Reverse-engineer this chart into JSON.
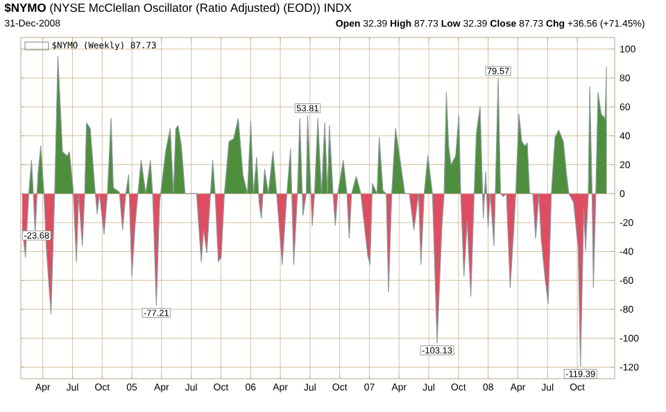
{
  "chart_data": {
    "type": "area",
    "title": "**$NYMO** (NYSE McClellan Oscillator (Ratio Adjusted) (EOD)) INDX",
    "subtitle": "31-Dec-2008",
    "annotations": [
      "**Open** 32.39 **High** 87.73 **Low** 32.39 **Close** 87.73 **Chg** +36.56 (+71.45%)",
      {
        "text": "-23.68",
        "x": 2004.077,
        "y": -23.68
      },
      {
        "text": "-77.21",
        "x": 2005.206,
        "y": -77.21
      },
      {
        "text": "53.81",
        "x": 2006.48,
        "y": 53.81
      },
      {
        "text": "-103.13",
        "x": 2007.57,
        "y": -103.13
      },
      {
        "text": "79.57",
        "x": 2008.084,
        "y": 79.57
      },
      {
        "text": "-119.39",
        "x": 2008.777,
        "y": -119.39
      }
    ],
    "series": [
      {
        "name": "$NYMO (Weekly) 87.73",
        "color": "#4e8f3e",
        "x": [
          2004.077,
          2004.104,
          2004.132,
          2004.155,
          2004.171,
          2004.186,
          2004.209,
          2004.233,
          2004.26,
          2004.28,
          2004.319,
          2004.35,
          2004.377,
          2004.416,
          2004.455,
          2004.474,
          2004.505,
          2004.533,
          2004.552,
          2004.583,
          2004.603,
          2004.618,
          2004.65,
          2004.688,
          2004.708,
          2004.727,
          2004.766,
          2004.794,
          2004.825,
          2004.844,
          2004.895,
          2004.922,
          2004.949,
          2004.973,
          2005.0,
          2005.027,
          2005.051,
          2005.078,
          2005.117,
          2005.156,
          2005.175,
          2005.206,
          2005.234,
          2005.284,
          2005.323,
          2005.35,
          2005.37,
          2005.389,
          2005.417,
          2005.448,
          2005.545,
          2005.584,
          2005.604,
          2005.631,
          2005.662,
          2005.681,
          2005.701,
          2005.728,
          2005.752,
          2005.779,
          2005.818,
          2005.857,
          2005.896,
          2005.935,
          2005.973,
          2006.001,
          2006.024,
          2006.051,
          2006.071,
          2006.09,
          2006.118,
          2006.149,
          2006.188,
          2006.219,
          2006.266,
          2006.305,
          2006.336,
          2006.363,
          2006.394,
          2006.414,
          2006.441,
          2006.468,
          2006.48,
          2006.519,
          2006.538,
          2006.566,
          2006.597,
          2006.624,
          2006.647,
          2006.663,
          2006.694,
          2006.713,
          2006.733,
          2006.78,
          2006.811,
          2006.83,
          2006.85,
          2006.889,
          2006.928,
          2006.986,
          2007.005,
          2007.025,
          2007.064,
          2007.083,
          2007.114,
          2007.142,
          2007.161,
          2007.188,
          2007.22,
          2007.259,
          2007.298,
          2007.336,
          2007.375,
          2007.414,
          2007.434,
          2007.461,
          2007.492,
          2007.531,
          2007.57,
          2007.609,
          2007.629,
          2007.648,
          2007.667,
          2007.687,
          2007.726,
          2007.753,
          2007.769,
          2007.796,
          2007.823,
          2007.854,
          2007.882,
          2007.901,
          2007.932,
          2007.959,
          2007.979,
          2007.999,
          2008.018,
          2008.049,
          2008.084,
          2008.104,
          2008.127,
          2008.154,
          2008.185,
          2008.213,
          2008.232,
          2008.259,
          2008.283,
          2008.31,
          2008.329,
          2008.349,
          2008.376,
          2008.4,
          2008.427,
          2008.446,
          2008.477,
          2008.505,
          2008.532,
          2008.563,
          2008.594,
          2008.633,
          2008.66,
          2008.68,
          2008.719,
          2008.758,
          2008.777,
          2008.805,
          2008.82,
          2008.843,
          2008.855,
          2008.875,
          2008.886,
          2008.906,
          2008.925,
          2008.952,
          2008.984,
          2008.997
        ],
        "values": [
          -23.68,
          -44,
          0,
          23,
          -1,
          -28,
          13,
          33,
          0,
          -38,
          -83,
          0,
          95,
          29,
          26,
          29,
          4,
          -47,
          -1,
          -36,
          0,
          49,
          45,
          4,
          -14,
          0,
          -28,
          0,
          52,
          4,
          1,
          -25,
          0,
          13,
          -57,
          -22,
          0,
          23,
          0,
          23,
          0,
          -77.21,
          -6,
          29,
          45,
          0,
          45,
          47,
          33,
          0,
          0,
          -47,
          -25,
          -41,
          0,
          23,
          0,
          -47,
          -44,
          0,
          36,
          38,
          52,
          13,
          0,
          50,
          0,
          25,
          -6,
          -17,
          17,
          0,
          29,
          0,
          -49,
          0,
          31,
          -49,
          0,
          52,
          -15,
          0,
          53.81,
          -22,
          0,
          52,
          0,
          49,
          0,
          47,
          0,
          -22,
          0,
          23,
          0,
          -31,
          0,
          12,
          0,
          -43,
          -49,
          7,
          0,
          39,
          2,
          0,
          -68,
          0,
          45,
          23,
          0,
          0,
          -25,
          0,
          -49,
          0,
          26,
          0,
          -103.13,
          -25,
          0,
          70,
          33,
          20,
          26,
          54,
          0,
          -57,
          -19,
          -71,
          0,
          42,
          60,
          -17,
          15,
          -23,
          0,
          -36,
          79.57,
          0,
          -2,
          0,
          -65,
          -28,
          0,
          55,
          36,
          33,
          35,
          0,
          0,
          -31,
          0,
          -31,
          -57,
          -76,
          0,
          39,
          44,
          36,
          13,
          0,
          -6,
          -38,
          -119.39,
          -11,
          -39,
          0,
          74,
          0,
          -65,
          0,
          70,
          55,
          52,
          87.73
        ]
      }
    ],
    "xlim": [
      2004.065,
      2009.065
    ],
    "xticks": [
      {
        "value": 2004.25,
        "label": "Apr"
      },
      {
        "value": 2004.5,
        "label": "Jul"
      },
      {
        "value": 2004.75,
        "label": "Oct"
      },
      {
        "value": 2005,
        "label": "05"
      },
      {
        "value": 2005.25,
        "label": "Apr"
      },
      {
        "value": 2005.5,
        "label": "Jul"
      },
      {
        "value": 2005.75,
        "label": "Oct"
      },
      {
        "value": 2006,
        "label": "06"
      },
      {
        "value": 2006.25,
        "label": "Apr"
      },
      {
        "value": 2006.5,
        "label": "Jul"
      },
      {
        "value": 2006.75,
        "label": "Oct"
      },
      {
        "value": 2007,
        "label": "07"
      },
      {
        "value": 2007.25,
        "label": "Apr"
      },
      {
        "value": 2007.5,
        "label": "Jul"
      },
      {
        "value": 2007.75,
        "label": "Oct"
      },
      {
        "value": 2008,
        "label": "08"
      },
      {
        "value": 2008.25,
        "label": "Apr"
      },
      {
        "value": 2008.5,
        "label": "Jul"
      },
      {
        "value": 2008.75,
        "label": "Oct"
      }
    ],
    "ylim": [
      -128,
      108
    ],
    "yticks": [
      -120,
      -100,
      -80,
      -60,
      -40,
      -20,
      0,
      20,
      40,
      60,
      80,
      100
    ],
    "grid": true,
    "legend": "top left"
  }
}
